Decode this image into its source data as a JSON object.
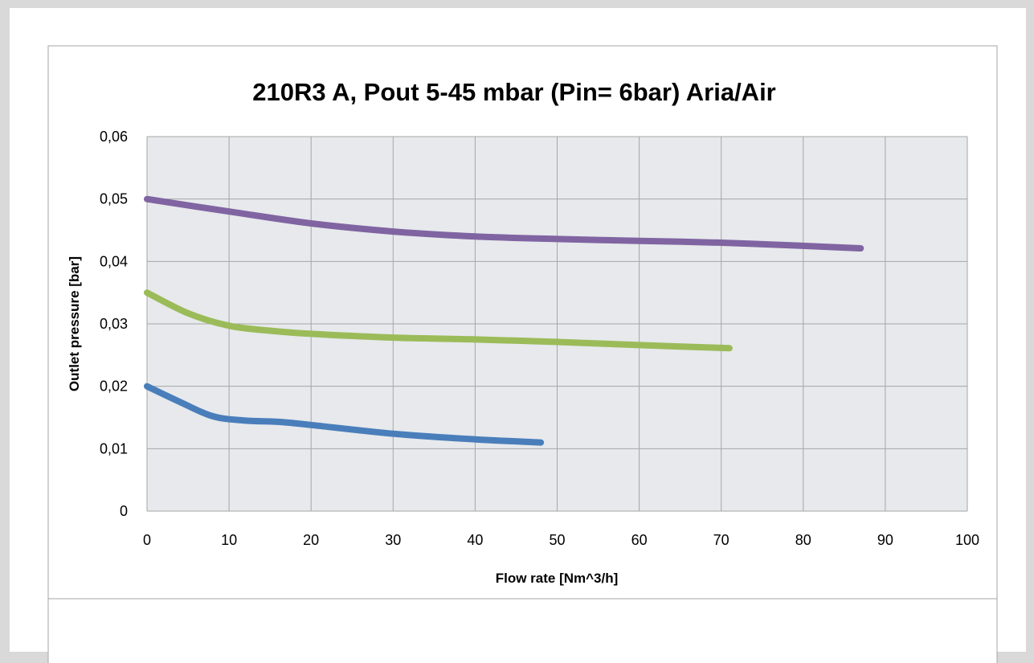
{
  "chart_data": {
    "type": "line",
    "title": "210R3 A, Pout 5-45 mbar    (Pin= 6bar) Aria/Air",
    "xlabel": "Flow rate [Nm^3/h]",
    "ylabel": "Outlet pressure [bar]",
    "xlim": [
      0,
      100
    ],
    "ylim": [
      0,
      0.06
    ],
    "x_ticks": [
      0,
      10,
      20,
      30,
      40,
      50,
      60,
      70,
      80,
      90,
      100
    ],
    "y_ticks": [
      0,
      0.01,
      0.02,
      0.03,
      0.04,
      0.05,
      0.06
    ],
    "x_tick_labels": [
      "0",
      "10",
      "20",
      "30",
      "40",
      "50",
      "60",
      "70",
      "80",
      "90",
      "100"
    ],
    "y_tick_labels": [
      "0",
      "0,01",
      "0,02",
      "0,03",
      "0,04",
      "0,05",
      "0,06"
    ],
    "grid": true,
    "legend": "none",
    "plot_background": "#e7e9ec",
    "series": [
      {
        "color": "#4a7ebb",
        "points": [
          [
            0,
            0.02
          ],
          [
            4,
            0.0175
          ],
          [
            8,
            0.0152
          ],
          [
            12,
            0.0145
          ],
          [
            16,
            0.0143
          ],
          [
            20,
            0.0138
          ],
          [
            30,
            0.0124
          ],
          [
            40,
            0.0115
          ],
          [
            48,
            0.011
          ]
        ]
      },
      {
        "color": "#9bbb59",
        "points": [
          [
            0,
            0.035
          ],
          [
            5,
            0.0317
          ],
          [
            10,
            0.0297
          ],
          [
            15,
            0.0289
          ],
          [
            20,
            0.0284
          ],
          [
            30,
            0.0278
          ],
          [
            40,
            0.0275
          ],
          [
            50,
            0.0271
          ],
          [
            60,
            0.0266
          ],
          [
            71,
            0.0261
          ]
        ]
      },
      {
        "color": "#8064a2",
        "points": [
          [
            0,
            0.05
          ],
          [
            10,
            0.048
          ],
          [
            20,
            0.0461
          ],
          [
            30,
            0.0448
          ],
          [
            40,
            0.044
          ],
          [
            50,
            0.0436
          ],
          [
            60,
            0.0433
          ],
          [
            70,
            0.043
          ],
          [
            80,
            0.0425
          ],
          [
            87,
            0.0421
          ]
        ]
      }
    ]
  }
}
